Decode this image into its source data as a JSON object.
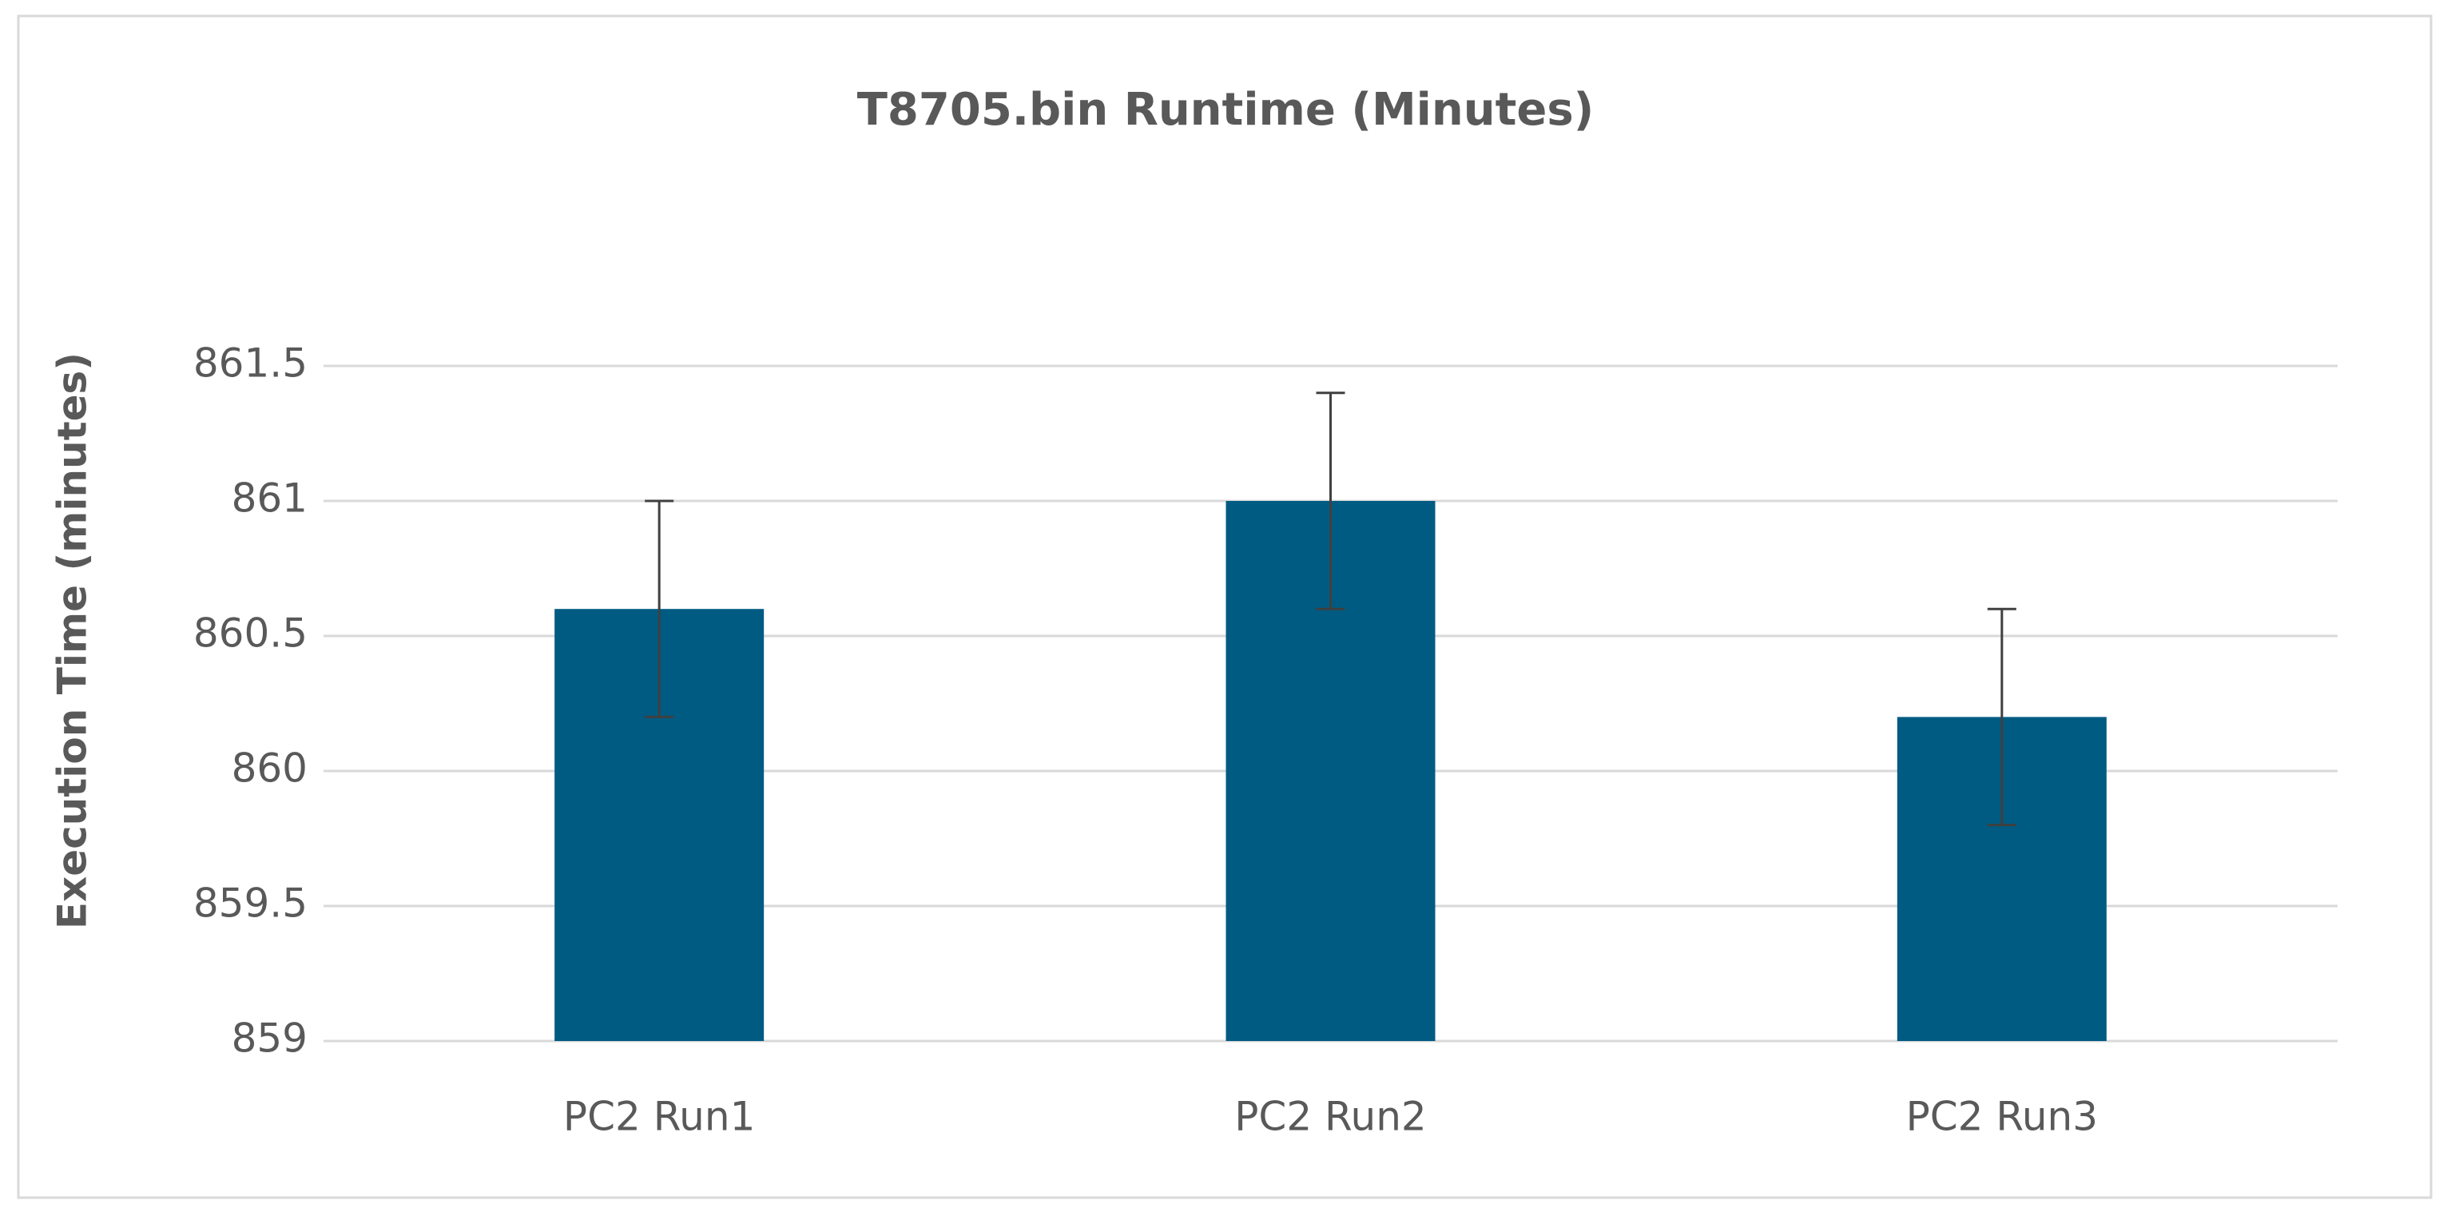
{
  "chart_data": {
    "type": "bar",
    "title": "T8705.bin Runtime (Minutes)",
    "y_label": "Execution Time (minutes)",
    "categories": [
      "PC2 Run1",
      "PC2 Run2",
      "PC2 Run3"
    ],
    "values": [
      860.6,
      861.0,
      860.2
    ],
    "errors": [
      0.4,
      0.4,
      0.4
    ],
    "color": "#005b82",
    "ylim": [
      859,
      861.5
    ],
    "yticks": [
      859,
      859.5,
      860,
      860.5,
      861,
      861.5
    ],
    "grid": true
  }
}
